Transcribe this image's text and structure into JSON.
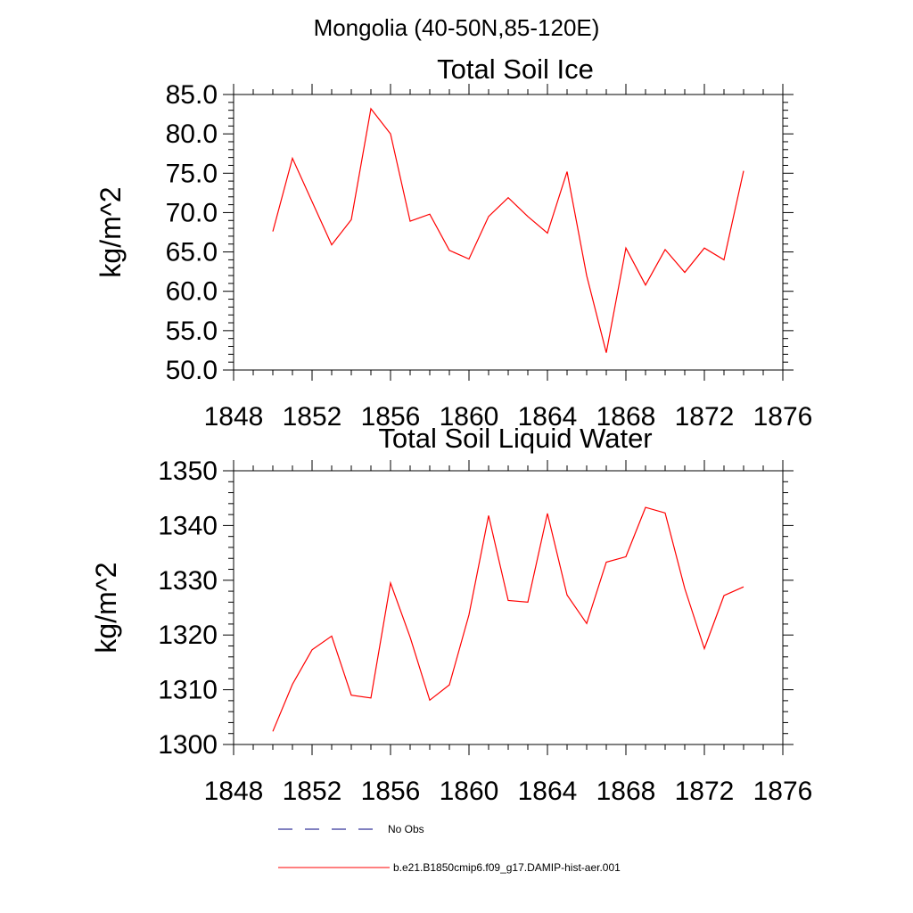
{
  "figure": {
    "suptitle": "Mongolia (40-50N,85-120E)",
    "legend": [
      {
        "label": "No Obs",
        "color": "#000080",
        "dash": "dashed"
      },
      {
        "label": "b.e21.B1850cmip6.f09_g17.DAMIP-hist-aer.001",
        "color": "#ff0000",
        "dash": "solid"
      }
    ]
  },
  "chart_data": [
    {
      "type": "line",
      "title": "Total Soil Ice",
      "xlabel": "",
      "ylabel": "kg/m^2",
      "xlim": [
        1848,
        1876
      ],
      "ylim": [
        50,
        85
      ],
      "xticks": [
        "1848",
        "1852",
        "1856",
        "1860",
        "1864",
        "1868",
        "1872",
        "1876"
      ],
      "xtick_values": [
        1848,
        1852,
        1856,
        1860,
        1864,
        1868,
        1872,
        1876
      ],
      "yticks": [
        "50.0",
        "55.0",
        "60.0",
        "65.0",
        "70.0",
        "75.0",
        "80.0",
        "85.0"
      ],
      "ytick_values": [
        50,
        55,
        60,
        65,
        70,
        75,
        80,
        85
      ],
      "grid": false,
      "series": [
        {
          "name": "b.e21.B1850cmip6.f09_g17.DAMIP-hist-aer.001",
          "color": "#ff0000",
          "x": [
            1850,
            1851,
            1852,
            1853,
            1854,
            1855,
            1856,
            1857,
            1858,
            1859,
            1860,
            1861,
            1862,
            1863,
            1864,
            1865,
            1866,
            1867,
            1868,
            1869,
            1870,
            1871,
            1872,
            1873,
            1874
          ],
          "values": [
            67.6,
            76.9,
            71.4,
            65.9,
            69.1,
            83.2,
            80.0,
            68.9,
            69.8,
            65.2,
            64.1,
            69.5,
            71.9,
            69.5,
            67.4,
            75.2,
            62.0,
            52.2,
            65.5,
            60.8,
            65.3,
            62.4,
            65.5,
            64.0,
            75.3
          ]
        }
      ]
    },
    {
      "type": "line",
      "title": "Total Soil Liquid Water",
      "xlabel": "",
      "ylabel": "kg/m^2",
      "xlim": [
        1848,
        1876
      ],
      "ylim": [
        1300,
        1350
      ],
      "xticks": [
        "1848",
        "1852",
        "1856",
        "1860",
        "1864",
        "1868",
        "1872",
        "1876"
      ],
      "xtick_values": [
        1848,
        1852,
        1856,
        1860,
        1864,
        1868,
        1872,
        1876
      ],
      "yticks": [
        "1300",
        "1310",
        "1320",
        "1330",
        "1340",
        "1350"
      ],
      "ytick_values": [
        1300,
        1310,
        1320,
        1330,
        1340,
        1350
      ],
      "grid": false,
      "series": [
        {
          "name": "b.e21.B1850cmip6.f09_g17.DAMIP-hist-aer.001",
          "color": "#ff0000",
          "x": [
            1850,
            1851,
            1852,
            1853,
            1854,
            1855,
            1856,
            1857,
            1858,
            1859,
            1860,
            1861,
            1862,
            1863,
            1864,
            1865,
            1866,
            1867,
            1868,
            1869,
            1870,
            1871,
            1872,
            1873,
            1874
          ],
          "values": [
            1302.4,
            1311.0,
            1317.3,
            1319.8,
            1309.0,
            1308.5,
            1329.5,
            1319.6,
            1308.1,
            1310.9,
            1323.7,
            1341.8,
            1326.3,
            1326.0,
            1342.2,
            1327.3,
            1322.1,
            1333.3,
            1334.3,
            1343.3,
            1342.3,
            1328.5,
            1317.5,
            1327.2,
            1328.8
          ]
        }
      ]
    }
  ]
}
